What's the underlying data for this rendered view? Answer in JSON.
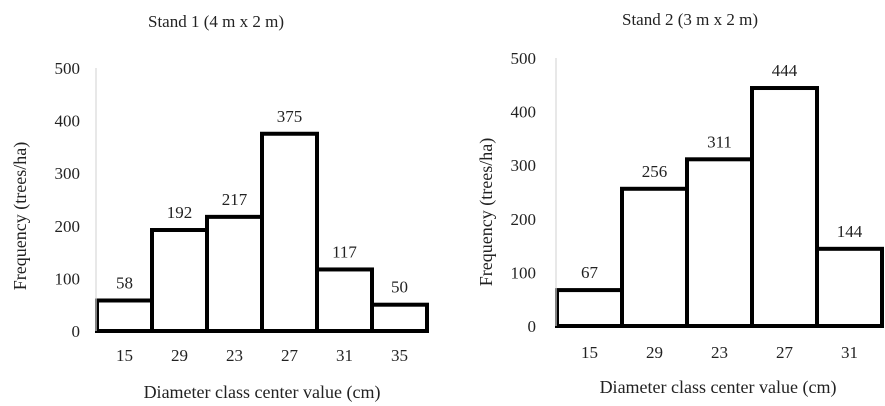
{
  "chart_data": [
    {
      "type": "bar",
      "title": "Stand 1 (4 m x 2 m)",
      "xlabel": "Diameter class center value (cm)",
      "ylabel": "Frequency (trees/ha)",
      "categories": [
        "15",
        "29",
        "23",
        "27",
        "31",
        "35"
      ],
      "values": [
        58,
        192,
        217,
        375,
        117,
        50
      ],
      "ylim": [
        0,
        500
      ],
      "yticks": [
        "0",
        "100",
        "200",
        "300",
        "400",
        "500"
      ],
      "grid": false,
      "bar_fill": "#ffffff",
      "bar_stroke": "#000000"
    },
    {
      "type": "bar",
      "title": "Stand 2 (3 m x 2 m)",
      "xlabel": "Diameter class center value (cm)",
      "ylabel": "Frequency (trees/ha)",
      "categories": [
        "15",
        "29",
        "23",
        "27",
        "31"
      ],
      "values": [
        67,
        256,
        311,
        444,
        144
      ],
      "ylim": [
        0,
        500
      ],
      "yticks": [
        "0",
        "100",
        "200",
        "300",
        "400",
        "500"
      ],
      "grid": false,
      "bar_fill": "#ffffff",
      "bar_stroke": "#000000"
    }
  ]
}
